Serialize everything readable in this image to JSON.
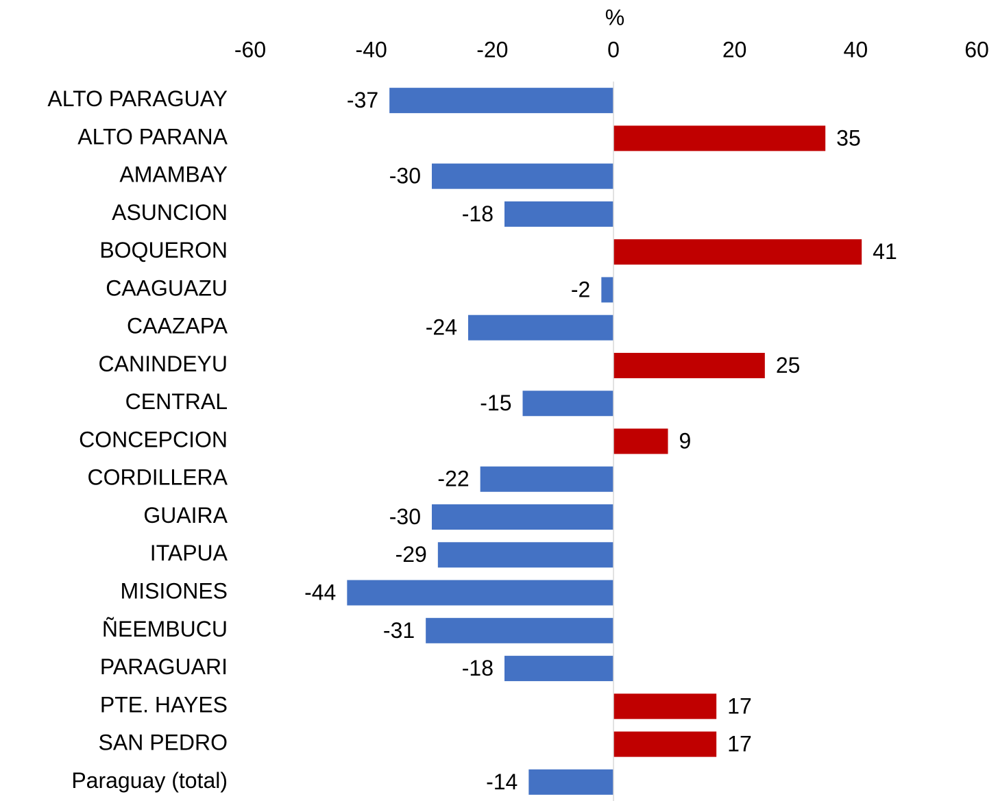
{
  "chart_data": {
    "type": "bar",
    "orientation": "horizontal",
    "x_label": "%",
    "categories": [
      "ALTO PARAGUAY",
      "ALTO PARANA",
      "AMAMBAY",
      "ASUNCION",
      "BOQUERON",
      "CAAGUAZU",
      "CAAZAPA",
      "CANINDEYU",
      "CENTRAL",
      "CONCEPCION",
      "CORDILLERA",
      "GUAIRA",
      "ITAPUA",
      "MISIONES",
      "ÑEEMBUCU",
      "PARAGUARI",
      "PTE. HAYES",
      "SAN PEDRO",
      "Paraguay (total)"
    ],
    "values": [
      -37,
      35,
      -30,
      -18,
      41,
      -2,
      -24,
      25,
      -15,
      9,
      -22,
      -30,
      -29,
      -44,
      -31,
      -18,
      17,
      17,
      -14
    ],
    "color_negative": "#4472c4",
    "color_positive": "#c00000",
    "xlim": [
      -60,
      60
    ],
    "xticks": [
      -60,
      -40,
      -20,
      0,
      20,
      40,
      60
    ],
    "grid": false
  }
}
